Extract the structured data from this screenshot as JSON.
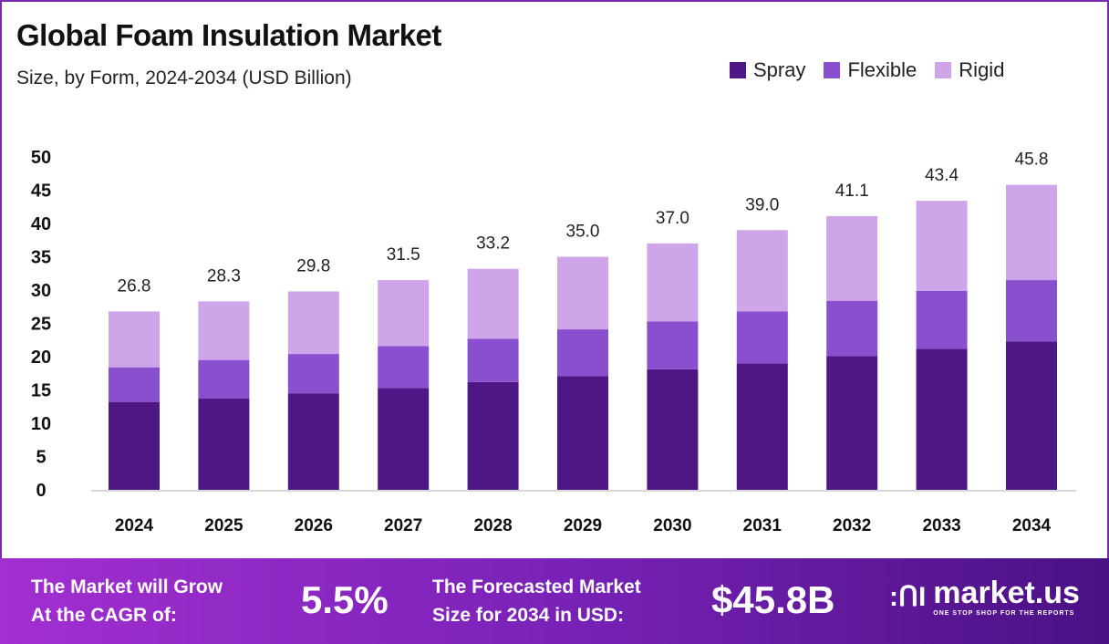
{
  "title": "Global Foam Insulation Market",
  "subtitle": "Size, by Form, 2024-2034 (USD Billion)",
  "colors": {
    "spray": "#4f1785",
    "flexible": "#8a4fcf",
    "rigid": "#cfa5ea",
    "footer_start": "#a22fd0",
    "footer_end": "#4a1184"
  },
  "chart_data": {
    "type": "bar",
    "stacked": true,
    "categories": [
      "2024",
      "2025",
      "2026",
      "2027",
      "2028",
      "2029",
      "2030",
      "2031",
      "2032",
      "2033",
      "2034"
    ],
    "series": [
      {
        "name": "Spray",
        "values": [
          13.2,
          13.7,
          14.5,
          15.3,
          16.2,
          17.1,
          18.1,
          19.0,
          20.1,
          21.2,
          22.3
        ]
      },
      {
        "name": "Flexible",
        "values": [
          5.2,
          5.8,
          5.9,
          6.3,
          6.5,
          7.0,
          7.2,
          7.8,
          8.3,
          8.7,
          9.2
        ]
      },
      {
        "name": "Rigid",
        "values": [
          8.4,
          8.8,
          9.4,
          9.9,
          10.5,
          10.9,
          11.7,
          12.2,
          12.7,
          13.5,
          14.3
        ]
      }
    ],
    "totals": [
      "26.8",
      "28.3",
      "29.8",
      "31.5",
      "33.2",
      "35.0",
      "37.0",
      "39.0",
      "41.1",
      "43.4",
      "45.8"
    ],
    "yticks": [
      "0",
      "5",
      "10",
      "15",
      "20",
      "25",
      "30",
      "35",
      "40",
      "45",
      "50"
    ],
    "ylim": [
      0,
      50
    ],
    "grid": false,
    "legend_position": "top-right"
  },
  "footer": {
    "cagr_label_1": "The Market will Grow",
    "cagr_label_2": "At the CAGR of:",
    "cagr_value": "5.5%",
    "forecast_label_1": "The Forecasted Market",
    "forecast_label_2": "Size for 2034 in USD:",
    "forecast_value": "$45.8B",
    "logo_text": "market.us",
    "logo_tagline": "ONE STOP SHOP FOR THE REPORTS"
  }
}
